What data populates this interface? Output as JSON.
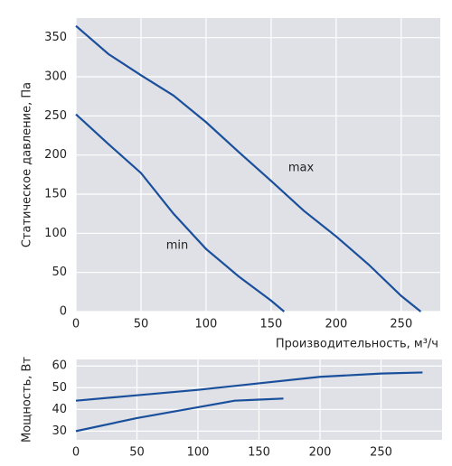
{
  "chart_data": [
    {
      "type": "line",
      "ylabel": "Статическое давление, Па",
      "xlabel": "Производительность, м³/ч",
      "xlim": [
        0,
        280
      ],
      "ylim": [
        0,
        375
      ],
      "xticks": [
        0,
        50,
        100,
        150,
        200,
        250
      ],
      "yticks": [
        0,
        50,
        100,
        150,
        200,
        250,
        300,
        350
      ],
      "grid": true,
      "background": "#dfe1e6",
      "series": [
        {
          "name": "max",
          "color": "#1a4f9c",
          "x": [
            0,
            25,
            50,
            75,
            100,
            125,
            150,
            175,
            200,
            225,
            250,
            265
          ],
          "values": [
            365,
            329,
            302,
            276,
            242,
            204,
            167,
            129,
            96,
            60,
            20,
            0
          ]
        },
        {
          "name": "min",
          "color": "#1a4f9c",
          "x": [
            0,
            25,
            50,
            75,
            100,
            125,
            150,
            160
          ],
          "values": [
            252,
            214,
            177,
            125,
            80,
            45,
            14,
            0
          ]
        }
      ]
    },
    {
      "type": "line",
      "ylabel": "Мощность, Вт",
      "xlim": [
        0,
        300
      ],
      "ylim": [
        26,
        63
      ],
      "xticks": [
        0,
        50,
        100,
        150,
        200,
        250
      ],
      "yticks": [
        30,
        40,
        50,
        60
      ],
      "grid": true,
      "background": "#dfe1e6",
      "series": [
        {
          "color": "#1a4f9c",
          "x": [
            0,
            50,
            100,
            150,
            200,
            250,
            284
          ],
          "values": [
            44,
            46.5,
            49,
            52,
            55,
            56.5,
            57
          ]
        },
        {
          "color": "#1a4f9c",
          "x": [
            0,
            50,
            100,
            130,
            150,
            170
          ],
          "values": [
            30,
            36,
            41,
            44,
            44.5,
            45
          ]
        }
      ]
    }
  ]
}
